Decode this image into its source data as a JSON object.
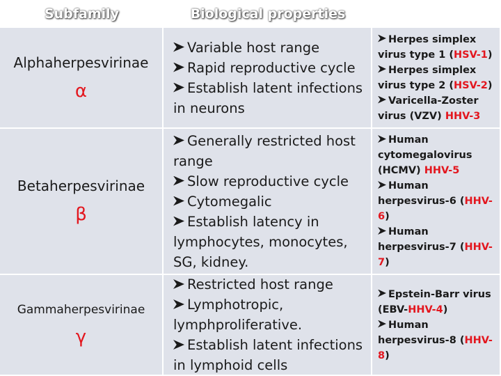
{
  "header": {
    "subfamily": "Subfamily",
    "properties": "Biological properties"
  },
  "rows": [
    {
      "name": "Alphaherpesvirinae",
      "symbol": "α",
      "properties": [
        "Variable host range",
        "Rapid reproductive cycle",
        "Establish latent infections in neurons"
      ],
      "examples": [
        [
          {
            "text": "Herpes simplex virus type 1 ("
          },
          {
            "text": "HSV-1",
            "color": "#e3161e"
          },
          {
            "text": ")"
          }
        ],
        [
          {
            "text": "Herpes simplex virus type 2 ("
          },
          {
            "text": "HSV-2",
            "color": "#e3161e"
          },
          {
            "text": ")"
          }
        ],
        [
          {
            "text": "Varicella-Zoster virus (VZV) "
          },
          {
            "text": "HHV-3",
            "color": "#e3161e"
          }
        ]
      ]
    },
    {
      "name": "Betaherpesvirinae",
      "symbol": "β",
      "properties": [
        "Generally restricted host range",
        "Slow reproductive cycle",
        "Cytomegalic",
        "Establish latency in lymphocytes, monocytes, SG, kidney."
      ],
      "examples": [
        [
          {
            "text": "Human cytomegalovirus (HCMV) "
          },
          {
            "text": "HHV-5",
            "color": "#e3161e"
          }
        ],
        [
          {
            "text": "Human herpesvirus-6 ("
          },
          {
            "text": "HHV-6",
            "color": "#e3161e"
          },
          {
            "text": ")"
          }
        ],
        [
          {
            "text": "Human herpesvirus-7 ("
          },
          {
            "text": "HHV-7",
            "color": "#e3161e"
          },
          {
            "text": ")"
          }
        ]
      ]
    },
    {
      "name": "Gammaherpesvirinae",
      "symbol": "γ",
      "properties": [
        "Restricted host range",
        "Lymphotropic, lymphproliferative.",
        "Establish latent infections in lymphoid cells"
      ],
      "examples": [
        [
          {
            "text": "Epstein-Barr virus (EBV-"
          },
          {
            "text": "HHV-4",
            "color": "#e3161e"
          },
          {
            "text": ")"
          }
        ],
        [
          {
            "text": "Human herpesvirus-8 ("
          },
          {
            "text": "HHV-8",
            "color": "#e3161e"
          },
          {
            "text": ")"
          }
        ]
      ]
    }
  ]
}
